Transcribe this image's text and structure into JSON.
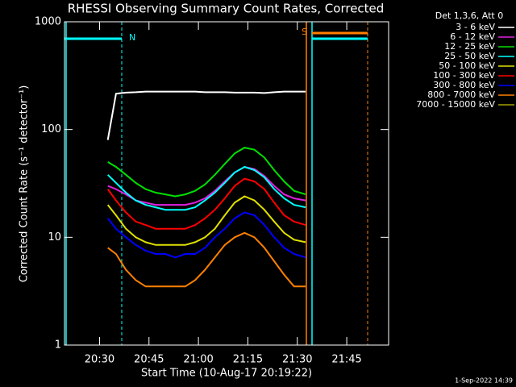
{
  "chart_data": {
    "type": "line",
    "title": "RHESSI Observing Summary Count Rates, Corrected",
    "x_label": "Start Time (10-Aug-17 20:19:22)",
    "y_label": "Corrected Count Rate (s⁻¹ detector⁻¹)",
    "legend_title": "Det 1,3,6, Att 0",
    "footer": "1-Sep-2022 14:39",
    "annotations": [
      "N",
      "S"
    ],
    "log_y": true,
    "xlim": [
      19.37,
      117.7
    ],
    "xticks": [
      {
        "value": 30,
        "label": "20:30"
      },
      {
        "value": 45,
        "label": "20:45"
      },
      {
        "value": 60,
        "label": "21:00"
      },
      {
        "value": 75,
        "label": "21:15"
      },
      {
        "value": 90,
        "label": "21:30"
      },
      {
        "value": 105,
        "label": "21:45"
      }
    ],
    "ylim": [
      1,
      1000
    ],
    "yticks": [
      1,
      10,
      100,
      1000
    ],
    "x": [
      32.5,
      35,
      38,
      41,
      44,
      47,
      50,
      53,
      56,
      59,
      62,
      65,
      68,
      71,
      74,
      77,
      80,
      83,
      86,
      89,
      92.5
    ],
    "series": [
      {
        "name": "3 - 6 keV",
        "color": "#ffffff",
        "values": [
          80,
          215,
          220,
          222,
          225,
          225,
          225,
          225,
          225,
          225,
          222,
          222,
          222,
          220,
          220,
          220,
          218,
          222,
          225,
          225,
          225
        ]
      },
      {
        "name": "6 - 12 keV",
        "color": "#e020e0",
        "values": [
          30,
          28,
          25,
          22,
          21,
          20,
          20,
          20,
          20,
          21,
          23,
          27,
          33,
          40,
          45,
          43,
          37,
          30,
          25,
          23,
          22
        ]
      },
      {
        "name": "12 - 25 keV",
        "color": "#00e000",
        "values": [
          50,
          45,
          38,
          32,
          28,
          26,
          25,
          24,
          25,
          27,
          31,
          38,
          48,
          60,
          68,
          65,
          55,
          42,
          33,
          27,
          25
        ]
      },
      {
        "name": "25 - 50 keV",
        "color": "#00ffff",
        "values": [
          38,
          32,
          26,
          22,
          20,
          19,
          18,
          18,
          18,
          19,
          22,
          26,
          32,
          40,
          45,
          42,
          36,
          28,
          23,
          20,
          19
        ]
      },
      {
        "name": "50 - 100 keV",
        "color": "#e0e000",
        "values": [
          20,
          16,
          12,
          10,
          9,
          8.5,
          8.5,
          8.5,
          8.5,
          9,
          10,
          12,
          16,
          21,
          24,
          22,
          18,
          14,
          11,
          9.5,
          9
        ]
      },
      {
        "name": "100 - 300 keV",
        "color": "#ff0000",
        "values": [
          28,
          22,
          17,
          14,
          13,
          12,
          12,
          12,
          12,
          13,
          15,
          18,
          23,
          30,
          35,
          33,
          28,
          21,
          16,
          14,
          13
        ]
      },
      {
        "name": "300 - 800 keV",
        "color": "#0000ff",
        "values": [
          15,
          12,
          10,
          8.5,
          7.5,
          7,
          7,
          6.5,
          7,
          7,
          8,
          10,
          12,
          15,
          17,
          16,
          13,
          10,
          8,
          7,
          6.5
        ]
      },
      {
        "name": "800 - 7000 keV",
        "color": "#ff8000",
        "values": [
          8,
          7,
          5,
          4,
          3.5,
          3.5,
          3.5,
          3.5,
          3.5,
          4,
          5,
          6.5,
          8.5,
          10,
          11,
          10,
          8,
          6,
          4.5,
          3.5,
          3.5
        ]
      },
      {
        "name": "7000 - 15000 keV",
        "color": "#a0a000",
        "values": [
          null,
          null,
          null,
          null,
          null,
          null,
          null,
          null,
          null,
          null,
          null,
          null,
          null,
          null,
          null,
          null,
          null,
          null,
          null,
          null,
          null
        ]
      }
    ]
  }
}
